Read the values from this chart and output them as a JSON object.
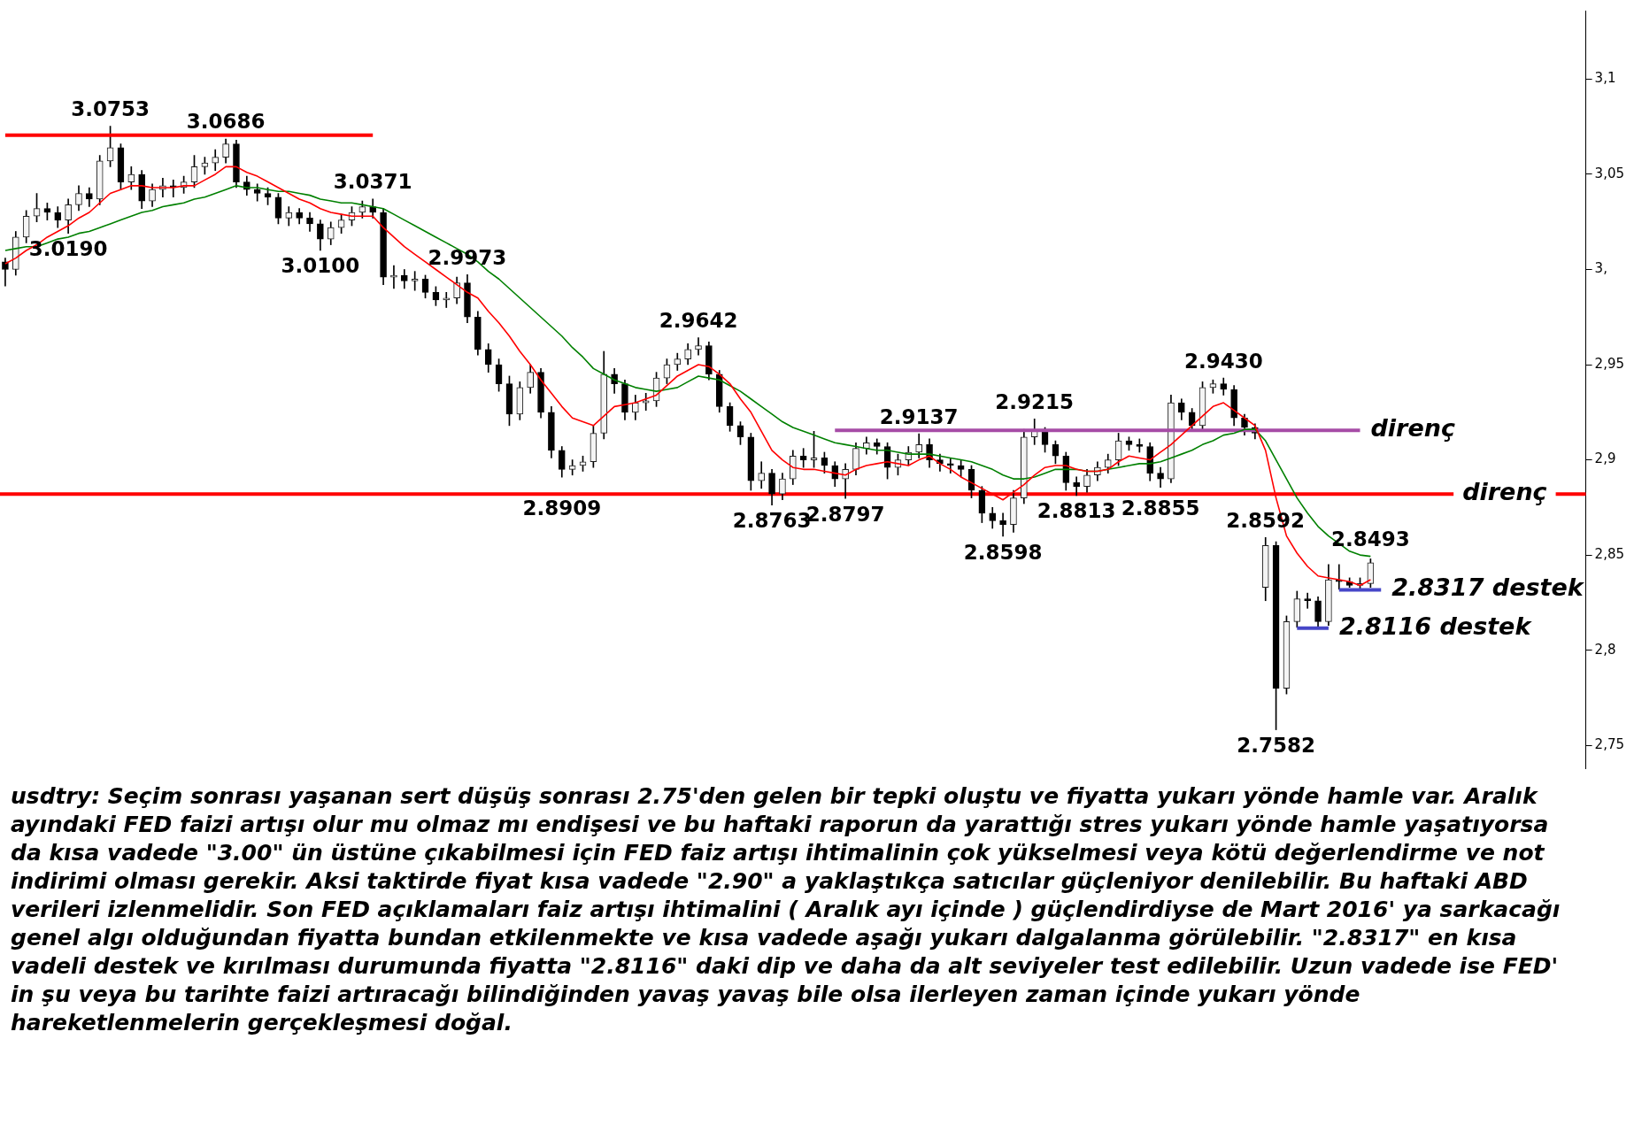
{
  "chart_data": {
    "type": "candlestick",
    "categories": [
      null,
      null,
      null,
      null,
      null,
      null,
      null,
      null,
      null,
      null,
      null,
      null,
      null,
      null,
      null,
      null,
      null,
      null,
      null,
      null,
      null,
      null,
      null,
      null,
      null,
      null,
      null,
      null,
      null,
      null,
      null,
      null,
      null,
      null,
      null,
      null,
      null,
      null,
      null,
      null,
      null,
      null,
      null,
      null,
      null,
      null,
      null,
      null,
      null,
      null,
      null,
      null,
      null,
      null,
      null,
      null,
      null,
      null,
      null,
      null,
      null,
      null,
      null,
      null,
      null,
      null,
      null,
      null,
      null,
      null,
      null,
      null,
      null,
      null,
      null,
      null,
      null,
      null,
      null,
      null,
      null,
      null,
      null,
      null,
      null,
      null,
      null,
      null,
      null,
      null,
      null,
      null,
      null,
      null,
      null,
      null,
      null,
      null,
      null,
      null,
      null,
      null,
      null,
      null,
      null,
      null,
      null,
      null,
      null,
      null,
      null,
      null,
      null,
      null,
      null,
      null,
      null,
      null,
      null,
      null,
      null,
      null,
      null,
      null,
      null,
      null,
      null,
      null,
      null,
      null,
      null,
      null,
      null,
      null,
      null,
      null,
      null,
      null,
      null,
      null,
      null,
      null,
      null,
      null,
      null,
      null,
      null,
      null,
      null,
      null,
      null
    ],
    "ohlc": [
      [
        3.004,
        3.006,
        2.9913,
        3.0
      ],
      [
        3.0,
        3.02,
        2.997,
        3.017
      ],
      [
        3.017,
        3.031,
        3.014,
        3.028
      ],
      [
        3.028,
        3.04,
        3.025,
        3.032
      ],
      [
        3.032,
        3.035,
        3.026,
        3.03
      ],
      [
        3.03,
        3.033,
        3.022,
        3.026
      ],
      [
        3.026,
        3.037,
        3.019,
        3.034
      ],
      [
        3.034,
        3.044,
        3.031,
        3.04
      ],
      [
        3.04,
        3.043,
        3.033,
        3.037
      ],
      [
        3.037,
        3.06,
        3.034,
        3.057
      ],
      [
        3.057,
        3.0753,
        3.054,
        3.064
      ],
      [
        3.064,
        3.066,
        3.042,
        3.046
      ],
      [
        3.046,
        3.054,
        3.042,
        3.05
      ],
      [
        3.05,
        3.052,
        3.032,
        3.036
      ],
      [
        3.036,
        3.045,
        3.033,
        3.042
      ],
      [
        3.042,
        3.048,
        3.038,
        3.044
      ],
      [
        3.044,
        3.047,
        3.038,
        3.043
      ],
      [
        3.043,
        3.049,
        3.04,
        3.046
      ],
      [
        3.046,
        3.06,
        3.043,
        3.054
      ],
      [
        3.054,
        3.059,
        3.05,
        3.056
      ],
      [
        3.056,
        3.063,
        3.052,
        3.059
      ],
      [
        3.059,
        3.0686,
        3.056,
        3.066
      ],
      [
        3.066,
        3.068,
        3.043,
        3.046
      ],
      [
        3.046,
        3.049,
        3.039,
        3.042
      ],
      [
        3.042,
        3.045,
        3.036,
        3.04
      ],
      [
        3.04,
        3.043,
        3.034,
        3.038
      ],
      [
        3.038,
        3.04,
        3.024,
        3.027
      ],
      [
        3.027,
        3.033,
        3.023,
        3.03
      ],
      [
        3.03,
        3.032,
        3.024,
        3.027
      ],
      [
        3.027,
        3.03,
        3.02,
        3.024
      ],
      [
        3.024,
        3.026,
        3.01,
        3.016
      ],
      [
        3.016,
        3.025,
        3.013,
        3.022
      ],
      [
        3.022,
        3.029,
        3.019,
        3.026
      ],
      [
        3.026,
        3.033,
        3.023,
        3.03
      ],
      [
        3.03,
        3.036,
        3.027,
        3.033
      ],
      [
        3.033,
        3.0371,
        3.027,
        3.03
      ],
      [
        3.03,
        3.032,
        2.992,
        2.996
      ],
      [
        2.996,
        3.002,
        2.99,
        2.997
      ],
      [
        2.997,
        3.0,
        2.99,
        2.994
      ],
      [
        2.994,
        2.999,
        2.989,
        2.995
      ],
      [
        2.995,
        2.997,
        2.985,
        2.988
      ],
      [
        2.988,
        2.991,
        2.981,
        2.984
      ],
      [
        2.984,
        2.988,
        2.98,
        2.985
      ],
      [
        2.985,
        2.996,
        2.982,
        2.993
      ],
      [
        2.993,
        2.9973,
        2.972,
        2.975
      ],
      [
        2.975,
        2.978,
        2.955,
        2.958
      ],
      [
        2.958,
        2.961,
        2.946,
        2.95
      ],
      [
        2.95,
        2.953,
        2.936,
        2.94
      ],
      [
        2.94,
        2.944,
        2.918,
        2.924
      ],
      [
        2.924,
        2.941,
        2.921,
        2.938
      ],
      [
        2.938,
        2.95,
        2.935,
        2.946
      ],
      [
        2.946,
        2.948,
        2.922,
        2.925
      ],
      [
        2.925,
        2.928,
        2.901,
        2.905
      ],
      [
        2.905,
        2.907,
        2.8909,
        2.895
      ],
      [
        2.895,
        2.9,
        2.892,
        2.897
      ],
      [
        2.897,
        2.902,
        2.894,
        2.899
      ],
      [
        2.899,
        2.918,
        2.896,
        2.914
      ],
      [
        2.914,
        2.957,
        2.911,
        2.945
      ],
      [
        2.945,
        2.948,
        2.935,
        2.94
      ],
      [
        2.94,
        2.942,
        2.921,
        2.925
      ],
      [
        2.925,
        2.934,
        2.921,
        2.93
      ],
      [
        2.93,
        2.935,
        2.926,
        2.931
      ],
      [
        2.931,
        2.946,
        2.928,
        2.943
      ],
      [
        2.943,
        2.953,
        2.94,
        2.95
      ],
      [
        2.95,
        2.956,
        2.947,
        2.953
      ],
      [
        2.953,
        2.961,
        2.95,
        2.958
      ],
      [
        2.958,
        2.9642,
        2.955,
        2.96
      ],
      [
        2.96,
        2.962,
        2.942,
        2.945
      ],
      [
        2.945,
        2.947,
        2.925,
        2.928
      ],
      [
        2.928,
        2.93,
        2.915,
        2.918
      ],
      [
        2.918,
        2.92,
        2.908,
        2.912
      ],
      [
        2.912,
        2.914,
        2.884,
        2.889
      ],
      [
        2.889,
        2.899,
        2.885,
        2.893
      ],
      [
        2.893,
        2.895,
        2.8763,
        2.882
      ],
      [
        2.882,
        2.893,
        2.879,
        2.89
      ],
      [
        2.89,
        2.905,
        2.887,
        2.902
      ],
      [
        2.902,
        2.906,
        2.896,
        2.9
      ],
      [
        2.9,
        2.915,
        2.896,
        2.901
      ],
      [
        2.901,
        2.904,
        2.893,
        2.897
      ],
      [
        2.897,
        2.899,
        2.886,
        2.89
      ],
      [
        2.89,
        2.898,
        2.8797,
        2.895
      ],
      [
        2.895,
        2.909,
        2.892,
        2.906
      ],
      [
        2.906,
        2.912,
        2.903,
        2.909
      ],
      [
        2.909,
        2.911,
        2.903,
        2.907
      ],
      [
        2.907,
        2.909,
        2.89,
        2.896
      ],
      [
        2.896,
        2.903,
        2.892,
        2.9
      ],
      [
        2.9,
        2.907,
        2.897,
        2.904
      ],
      [
        2.904,
        2.9137,
        2.901,
        2.908
      ],
      [
        2.908,
        2.911,
        2.896,
        2.9
      ],
      [
        2.9,
        2.903,
        2.894,
        2.898
      ],
      [
        2.898,
        2.901,
        2.893,
        2.897
      ],
      [
        2.897,
        2.9,
        2.891,
        2.895
      ],
      [
        2.895,
        2.897,
        2.88,
        2.884
      ],
      [
        2.884,
        2.886,
        2.867,
        2.872
      ],
      [
        2.872,
        2.875,
        2.864,
        2.868
      ],
      [
        2.868,
        2.872,
        2.8598,
        2.866
      ],
      [
        2.866,
        2.884,
        2.862,
        2.88
      ],
      [
        2.88,
        2.916,
        2.877,
        2.912
      ],
      [
        2.912,
        2.9215,
        2.908,
        2.915
      ],
      [
        2.915,
        2.917,
        2.904,
        2.908
      ],
      [
        2.908,
        2.91,
        2.898,
        2.902
      ],
      [
        2.902,
        2.904,
        2.884,
        2.888
      ],
      [
        2.888,
        2.891,
        2.8813,
        2.886
      ],
      [
        2.886,
        2.895,
        2.883,
        2.892
      ],
      [
        2.892,
        2.899,
        2.889,
        2.896
      ],
      [
        2.896,
        2.903,
        2.893,
        2.9
      ],
      [
        2.9,
        2.914,
        2.897,
        2.91
      ],
      [
        2.91,
        2.912,
        2.905,
        2.908
      ],
      [
        2.908,
        2.911,
        2.904,
        2.907
      ],
      [
        2.907,
        2.909,
        2.889,
        2.893
      ],
      [
        2.893,
        2.896,
        2.8855,
        2.89
      ],
      [
        2.89,
        2.934,
        2.888,
        2.93
      ],
      [
        2.93,
        2.932,
        2.921,
        2.925
      ],
      [
        2.925,
        2.927,
        2.915,
        2.918
      ],
      [
        2.918,
        2.941,
        2.916,
        2.938
      ],
      [
        2.938,
        2.942,
        2.935,
        2.94
      ],
      [
        2.94,
        2.943,
        2.934,
        2.937
      ],
      [
        2.937,
        2.939,
        2.918,
        2.922
      ],
      [
        2.922,
        2.924,
        2.913,
        2.917
      ],
      [
        2.917,
        2.919,
        2.911,
        2.914
      ],
      [
        2.833,
        2.8592,
        2.826,
        2.855
      ],
      [
        2.855,
        2.857,
        2.7582,
        2.78
      ],
      [
        2.78,
        2.818,
        2.777,
        2.815
      ],
      [
        2.815,
        2.831,
        2.812,
        2.827
      ],
      [
        2.827,
        2.83,
        2.822,
        2.826
      ],
      [
        2.826,
        2.828,
        2.8116,
        2.815
      ],
      [
        2.815,
        2.845,
        2.813,
        2.837
      ],
      [
        2.837,
        2.845,
        2.832,
        2.836
      ],
      [
        2.836,
        2.838,
        2.833,
        2.834
      ],
      [
        2.834,
        2.838,
        2.8317,
        2.835
      ],
      [
        2.835,
        2.848,
        2.833,
        2.846
      ],
      null,
      null,
      null,
      null,
      null,
      null,
      null,
      null,
      null,
      null,
      null,
      null,
      null,
      null,
      null,
      null,
      null,
      null,
      null,
      null
    ],
    "series": [
      {
        "type": "line",
        "color": "#ff0000",
        "values": [
          3.003,
          3.006,
          3.01,
          3.013,
          3.017,
          3.02,
          3.023,
          3.027,
          3.03,
          3.035,
          3.04,
          3.042,
          3.044,
          3.044,
          3.043,
          3.043,
          3.043,
          3.044,
          3.044,
          3.047,
          3.05,
          3.054,
          3.054,
          3.051,
          3.049,
          3.046,
          3.043,
          3.04,
          3.037,
          3.035,
          3.032,
          3.03,
          3.029,
          3.028,
          3.028,
          3.028,
          3.022,
          3.017,
          3.012,
          3.008,
          3.004,
          3.0,
          2.996,
          2.992,
          2.988,
          2.985,
          2.978,
          2.972,
          2.965,
          2.957,
          2.95,
          2.942,
          2.935,
          2.928,
          2.922,
          2.92,
          2.918,
          2.923,
          2.928,
          2.929,
          2.93,
          2.932,
          2.934,
          2.939,
          2.944,
          2.947,
          2.95,
          2.949,
          2.945,
          2.94,
          2.932,
          2.925,
          2.915,
          2.905,
          2.9,
          2.896,
          2.895,
          2.895,
          2.894,
          2.893,
          2.892,
          2.895,
          2.897,
          2.898,
          2.899,
          2.898,
          2.897,
          2.9,
          2.902,
          2.898,
          2.895,
          2.891,
          2.888,
          2.885,
          2.882,
          2.879,
          2.883,
          2.887,
          2.892,
          2.896,
          2.897,
          2.897,
          2.895,
          2.894,
          2.894,
          2.895,
          2.899,
          2.902,
          2.901,
          2.9,
          2.904,
          2.908,
          2.913,
          2.918,
          2.923,
          2.928,
          2.93,
          2.926,
          2.922,
          2.918,
          2.905,
          2.88,
          2.86,
          2.851,
          2.844,
          2.839,
          2.838,
          2.837,
          2.836,
          2.834,
          2.837,
          null,
          null,
          null,
          null,
          null,
          null,
          null,
          null,
          null,
          null,
          null,
          null,
          null,
          null,
          null,
          null,
          null,
          null,
          null,
          null
        ]
      },
      {
        "type": "line",
        "color": "#008000",
        "values": [
          3.01,
          3.011,
          3.012,
          3.012,
          3.014,
          3.016,
          3.017,
          3.019,
          3.02,
          3.022,
          3.024,
          3.026,
          3.028,
          3.03,
          3.031,
          3.033,
          3.034,
          3.035,
          3.037,
          3.038,
          3.04,
          3.042,
          3.044,
          3.043,
          3.043,
          3.042,
          3.041,
          3.041,
          3.04,
          3.039,
          3.037,
          3.036,
          3.035,
          3.035,
          3.034,
          3.033,
          3.032,
          3.029,
          3.026,
          3.023,
          3.02,
          3.017,
          3.014,
          3.011,
          3.008,
          3.004,
          2.999,
          2.995,
          2.99,
          2.985,
          2.98,
          2.975,
          2.97,
          2.965,
          2.959,
          2.954,
          2.948,
          2.945,
          2.942,
          2.94,
          2.938,
          2.937,
          2.936,
          2.937,
          2.938,
          2.941,
          2.944,
          2.943,
          2.942,
          2.939,
          2.936,
          2.932,
          2.928,
          2.924,
          2.92,
          2.917,
          2.915,
          2.913,
          2.911,
          2.909,
          2.908,
          2.907,
          2.906,
          2.905,
          2.905,
          2.904,
          2.903,
          2.903,
          2.903,
          2.902,
          2.901,
          2.9,
          2.899,
          2.897,
          2.895,
          2.892,
          2.89,
          2.89,
          2.891,
          2.893,
          2.895,
          2.895,
          2.895,
          2.894,
          2.894,
          2.895,
          2.896,
          2.897,
          2.898,
          2.898,
          2.899,
          2.901,
          2.903,
          2.905,
          2.908,
          2.91,
          2.913,
          2.914,
          2.916,
          2.916,
          2.91,
          2.9,
          2.89,
          2.88,
          2.872,
          2.865,
          2.86,
          2.856,
          2.852,
          2.85,
          2.8493,
          null,
          null,
          null,
          null,
          null,
          null,
          null,
          null,
          null,
          null,
          null,
          null,
          null,
          null,
          null,
          null,
          null,
          null,
          null,
          null
        ]
      },
      {
        "type": "line",
        "color": "#ff0000",
        "values": [
          3.0706,
          3.0706,
          3.0706,
          3.0706,
          3.0706,
          3.0706,
          3.0706,
          3.0706,
          3.0706,
          3.0706,
          3.0706,
          3.0706,
          3.0706,
          3.0706,
          3.0706,
          3.0706,
          3.0706,
          3.0706,
          3.0706,
          3.0706,
          3.0706,
          3.0706,
          3.0706,
          3.0706,
          3.0706,
          3.0706,
          3.0706,
          3.0706,
          3.0706,
          3.0706,
          3.0706,
          3.0706,
          3.0706,
          3.0706,
          3.0706,
          3.0706,
          null,
          null,
          null,
          null,
          null,
          null,
          null,
          null,
          null,
          null,
          null,
          null,
          null,
          null,
          null,
          null,
          null,
          null,
          null,
          null,
          null,
          null,
          null,
          null,
          null,
          null,
          null,
          null,
          null,
          null,
          null,
          null,
          null,
          null,
          null,
          null,
          null,
          null,
          null,
          null,
          null,
          null,
          null,
          null,
          null,
          null,
          null,
          null,
          null,
          null,
          null,
          null,
          null,
          null,
          null,
          null,
          null,
          null,
          null,
          null,
          null,
          null,
          null,
          null,
          null,
          null,
          null,
          null,
          null,
          null,
          null,
          null,
          null,
          null,
          null,
          null,
          null,
          null,
          null,
          null,
          null,
          null,
          null,
          null,
          null,
          null,
          null,
          null,
          null,
          null,
          null,
          null,
          null,
          null,
          null,
          null,
          null,
          null,
          null,
          null,
          null,
          null,
          null,
          null,
          null,
          null,
          null,
          null,
          null,
          null,
          null,
          null,
          null,
          null,
          null
        ]
      },
      {
        "type": "line",
        "name": "direnç",
        "color": "#a64ca6",
        "values": [
          null,
          null,
          null,
          null,
          null,
          null,
          null,
          null,
          null,
          null,
          null,
          null,
          null,
          null,
          null,
          null,
          null,
          null,
          null,
          null,
          null,
          null,
          null,
          null,
          null,
          null,
          null,
          null,
          null,
          null,
          null,
          null,
          null,
          null,
          null,
          null,
          null,
          null,
          null,
          null,
          null,
          null,
          null,
          null,
          null,
          null,
          null,
          null,
          null,
          null,
          null,
          null,
          null,
          null,
          null,
          null,
          null,
          null,
          null,
          null,
          null,
          null,
          null,
          null,
          null,
          null,
          null,
          null,
          null,
          null,
          null,
          null,
          null,
          null,
          null,
          null,
          null,
          null,
          null,
          2.9155,
          2.9155,
          2.9155,
          2.9155,
          2.9155,
          2.9155,
          2.9155,
          2.9155,
          2.9155,
          2.9155,
          2.9155,
          2.9155,
          2.9155,
          2.9155,
          2.9155,
          2.9155,
          2.9155,
          2.9155,
          2.9155,
          2.9155,
          2.9155,
          2.9155,
          2.9155,
          2.9155,
          2.9155,
          2.9155,
          2.9155,
          2.9155,
          2.9155,
          2.9155,
          2.9155,
          2.9155,
          2.9155,
          2.9155,
          2.9155,
          2.9155,
          2.9155,
          2.9155,
          2.9155,
          2.9155,
          2.9155,
          2.9155,
          2.9155,
          2.9155,
          2.9155,
          2.9155,
          2.9155,
          2.9155,
          2.9155,
          2.9155,
          2.9155,
          null,
          null,
          null,
          null,
          null,
          null,
          null,
          null,
          null,
          null,
          null,
          null,
          null,
          null,
          null,
          null,
          null,
          null,
          null,
          null,
          null
        ]
      },
      {
        "type": "line",
        "name": "2.8116 destek",
        "color": "#4646c8",
        "values": [
          null,
          null,
          null,
          null,
          null,
          null,
          null,
          null,
          null,
          null,
          null,
          null,
          null,
          null,
          null,
          null,
          null,
          null,
          null,
          null,
          null,
          null,
          null,
          null,
          null,
          null,
          null,
          null,
          null,
          null,
          null,
          null,
          null,
          null,
          null,
          null,
          null,
          null,
          null,
          null,
          null,
          null,
          null,
          null,
          null,
          null,
          null,
          null,
          null,
          null,
          null,
          null,
          null,
          null,
          null,
          null,
          null,
          null,
          null,
          null,
          null,
          null,
          null,
          null,
          null,
          null,
          null,
          null,
          null,
          null,
          null,
          null,
          null,
          null,
          null,
          null,
          null,
          null,
          null,
          null,
          null,
          null,
          null,
          null,
          null,
          null,
          null,
          null,
          null,
          null,
          null,
          null,
          null,
          null,
          null,
          null,
          null,
          null,
          null,
          null,
          null,
          null,
          null,
          null,
          null,
          null,
          null,
          null,
          null,
          null,
          null,
          null,
          null,
          null,
          null,
          null,
          null,
          null,
          null,
          null,
          null,
          null,
          null,
          2.8116,
          2.8116,
          2.8116,
          2.8116,
          null,
          null,
          null,
          null,
          null,
          null,
          null,
          null,
          null,
          null,
          null,
          null,
          null,
          null,
          null,
          null,
          null,
          null,
          null,
          null,
          null,
          null,
          null,
          null
        ]
      },
      {
        "type": "line",
        "name": "2.8317 destek",
        "color": "#4646c8",
        "values": [
          null,
          null,
          null,
          null,
          null,
          null,
          null,
          null,
          null,
          null,
          null,
          null,
          null,
          null,
          null,
          null,
          null,
          null,
          null,
          null,
          null,
          null,
          null,
          null,
          null,
          null,
          null,
          null,
          null,
          null,
          null,
          null,
          null,
          null,
          null,
          null,
          null,
          null,
          null,
          null,
          null,
          null,
          null,
          null,
          null,
          null,
          null,
          null,
          null,
          null,
          null,
          null,
          null,
          null,
          null,
          null,
          null,
          null,
          null,
          null,
          null,
          null,
          null,
          null,
          null,
          null,
          null,
          null,
          null,
          null,
          null,
          null,
          null,
          null,
          null,
          null,
          null,
          null,
          null,
          null,
          null,
          null,
          null,
          null,
          null,
          null,
          null,
          null,
          null,
          null,
          null,
          null,
          null,
          null,
          null,
          null,
          null,
          null,
          null,
          null,
          null,
          null,
          null,
          null,
          null,
          null,
          null,
          null,
          null,
          null,
          null,
          null,
          null,
          null,
          null,
          null,
          null,
          null,
          null,
          null,
          null,
          null,
          null,
          null,
          null,
          null,
          null,
          2.8317,
          2.8317,
          2.8317,
          2.8317,
          2.8317,
          null,
          null,
          null,
          null,
          null,
          null,
          null,
          null,
          null,
          null,
          null,
          null,
          null,
          null,
          null,
          null,
          null,
          null,
          null
        ]
      }
    ],
    "ref_lines": [
      {
        "axis": "y",
        "value": 2.882,
        "label": "direnç",
        "color": "#ff0000"
      }
    ],
    "ylim": [
      2.738,
      3.136
    ],
    "yticks": [
      {
        "value": 2.75,
        "label": "2,75"
      },
      {
        "value": 2.8,
        "label": "2,8"
      },
      {
        "value": 2.85,
        "label": "2,85"
      },
      {
        "value": 2.9,
        "label": "2,9"
      },
      {
        "value": 2.95,
        "label": "2,95"
      },
      {
        "value": 3.0,
        "label": "3,"
      },
      {
        "value": 3.05,
        "label": "3,05"
      },
      {
        "value": 3.1,
        "label": "3,1"
      }
    ],
    "tick_labels": "y",
    "annotations": [
      {
        "text": "3.0753",
        "y": 3.0753
      },
      {
        "text": "3.0686",
        "y": 3.0686
      },
      {
        "text": "3.0190",
        "y": 3.019
      },
      {
        "text": "3.0100",
        "y": 3.01
      },
      {
        "text": "3.0371",
        "y": 3.0371
      },
      {
        "text": "2.9973",
        "y": 2.9973
      },
      {
        "text": "2.8909",
        "y": 2.8909
      },
      {
        "text": "2.9642",
        "y": 2.9642
      },
      {
        "text": "2.8763",
        "y": 2.8763
      },
      {
        "text": "2.8797",
        "y": 2.8797
      },
      {
        "text": "2.9137",
        "y": 2.9137
      },
      {
        "text": "2.8598",
        "y": 2.8598
      },
      {
        "text": "2.9215",
        "y": 2.9215
      },
      {
        "text": "2.8813",
        "y": 2.8813
      },
      {
        "text": "2.8855",
        "y": 2.8855
      },
      {
        "text": "2.9430",
        "y": 2.943
      },
      {
        "text": "2.8592",
        "y": 2.8592
      },
      {
        "text": "2.7582",
        "y": 2.7582
      },
      {
        "text": "2.8493",
        "y": 2.8493
      },
      "usdtry: Seçim sonrası yaşanan sert düşüş sonrası 2.75'den gelen bir tepki oluştu ve fiyatta yukarı yönde hamle var. Aralık ayındaki FED faizi artışı olur mu olmaz mı endişesi ve bu haftaki raporun da yarattığı stres yukarı yönde hamle yaşatıyorsa da kısa vadede \"3.00\" ün üstüne çıkabilmesi için FED faiz artışı ihtimalinin çok yükselmesi veya kötü değerlendirme ve not indirimi olması gerekir. Aksi taktirde fiyat kısa vadede \"2.90\" a yaklaştıkça satıcılar güçleniyor denilebilir. Bu haftaki ABD verileri izlenmelidir. Son FED açıklamaları faiz artışı ihtimalini ( Aralık ayı içinde ) güçlendirdiyse de Mart 2016' ya sarkacağı genel algı olduğundan fiyatta bundan etkilenmekte ve kısa vadede aşağı yukarı dalgalanma görülebilir. \"2.8317\" en kısa vadeli destek ve kırılması durumunda fiyatta \"2.8116\" daki dip ve daha da alt seviyeler test edilebilir. Uzun vadede ise FED' in şu veya bu tarihte faizi artıracağı bilindiğinden yavaş yavaş bile olsa ilerleyen zaman içinde yukarı yönde hareketlenmelerin gerçekleşmesi doğal."
    ]
  }
}
